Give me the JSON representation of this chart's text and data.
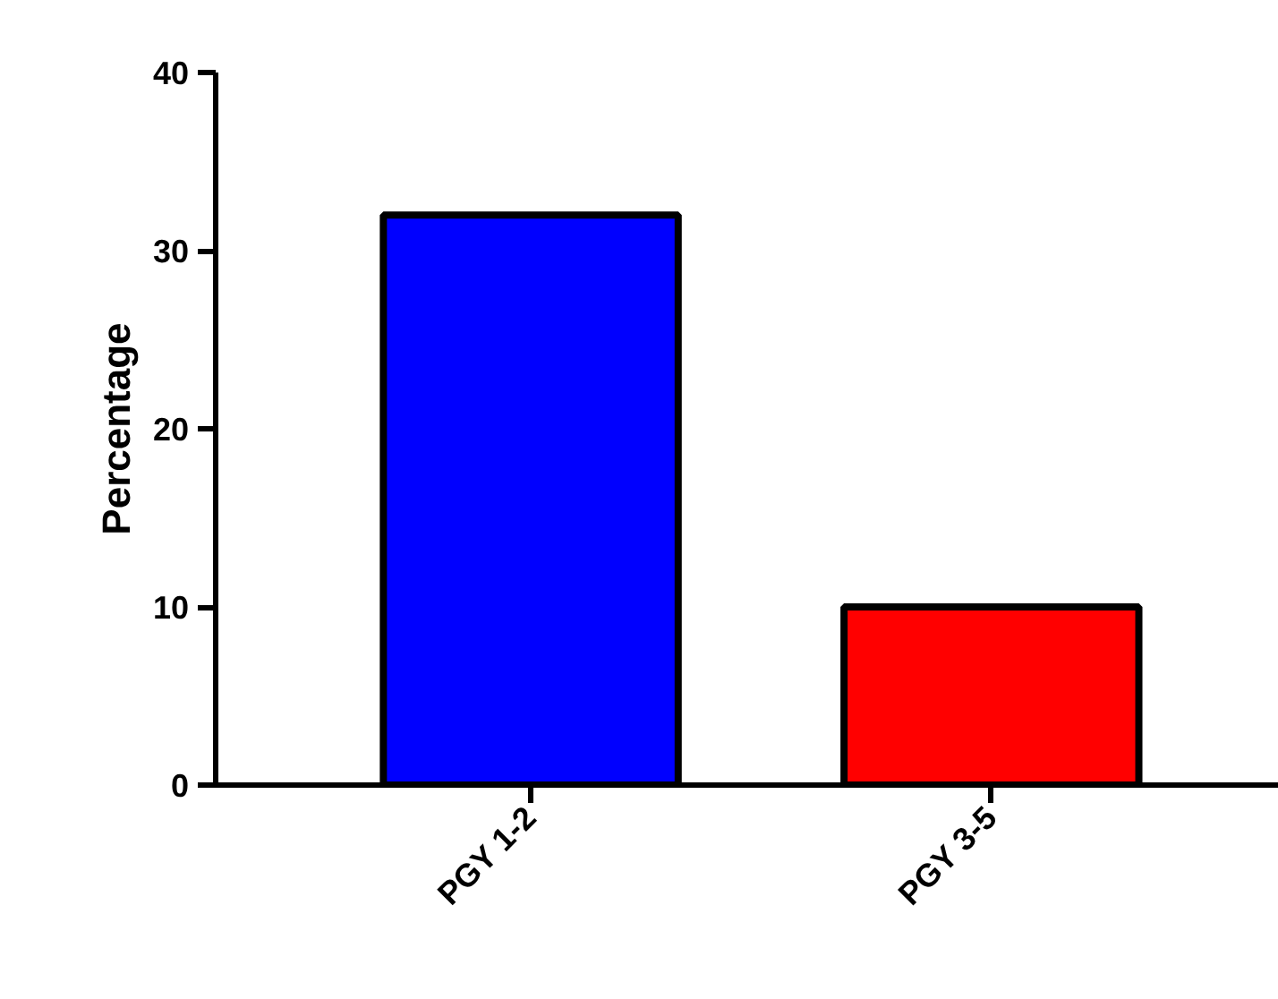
{
  "chart_data": {
    "type": "bar",
    "ylabel": "Percentage",
    "categories": [
      "PGY 1-2",
      "PGY 3-5"
    ],
    "values": [
      32,
      10
    ],
    "colors": [
      "#0000ff",
      "#ff0000"
    ],
    "ylim": [
      0,
      40
    ],
    "yticks": [
      0,
      10,
      20,
      30,
      40
    ],
    "grid": false
  }
}
